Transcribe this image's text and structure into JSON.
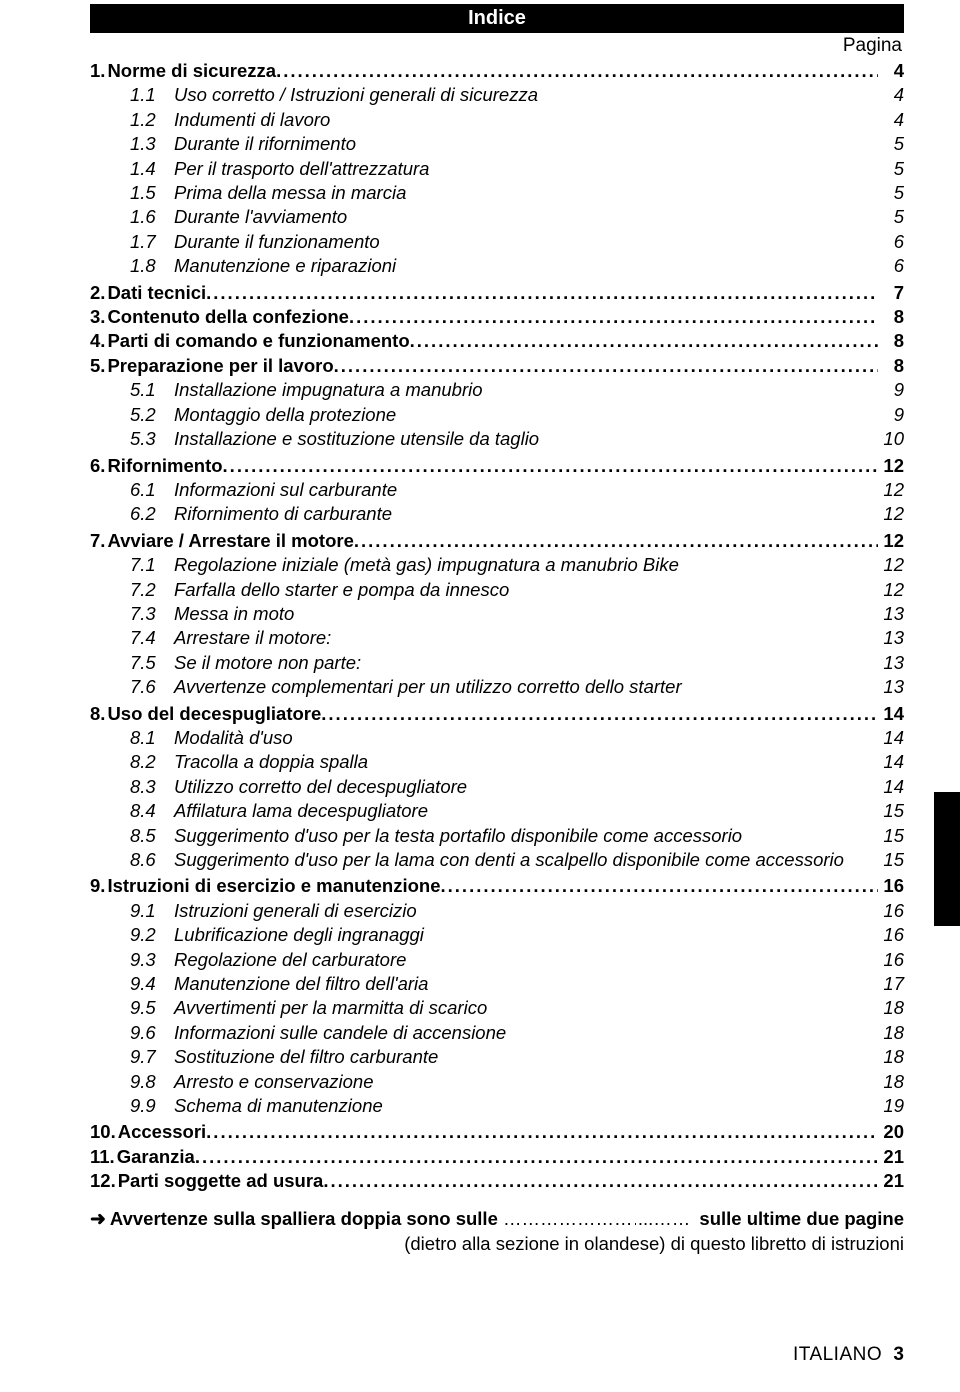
{
  "title": "Indice",
  "pagina_label": "Pagina",
  "colors": {
    "bg": "#ffffff",
    "bar_bg": "#000000",
    "bar_fg": "#ffffff",
    "text": "#000000"
  },
  "typography": {
    "base_fontsize_pt": 14,
    "title_fontsize_pt": 15,
    "font_family": "Arial"
  },
  "toc": [
    {
      "type": "main",
      "num": "1.",
      "title": "Norme di sicurezza",
      "page": "4"
    },
    {
      "type": "sub",
      "num": "1.1",
      "title": "Uso corretto / Istruzioni generali di sicurezza",
      "page": "4"
    },
    {
      "type": "sub",
      "num": "1.2",
      "title": "Indumenti di lavoro",
      "page": "4"
    },
    {
      "type": "sub",
      "num": "1.3",
      "title": "Durante il rifornimento",
      "page": "5"
    },
    {
      "type": "sub",
      "num": "1.4",
      "title": "Per il trasporto dell'attrezzatura",
      "page": "5"
    },
    {
      "type": "sub",
      "num": "1.5",
      "title": "Prima della messa in marcia",
      "page": "5"
    },
    {
      "type": "sub",
      "num": "1.6",
      "title": "Durante l'avviamento",
      "page": "5"
    },
    {
      "type": "sub",
      "num": "1.7",
      "title": "Durante il funzionamento",
      "page": "6"
    },
    {
      "type": "sub",
      "num": "1.8",
      "title": "Manutenzione e riparazioni",
      "page": "6"
    },
    {
      "type": "main",
      "num": "2.",
      "title": "Dati tecnici",
      "page": "7"
    },
    {
      "type": "main",
      "num": "3.",
      "title": "Contenuto della confezione",
      "page": "8"
    },
    {
      "type": "main",
      "num": "4.",
      "title": "Parti di comando e funzionamento",
      "page": "8"
    },
    {
      "type": "main",
      "num": "5.",
      "title": "Preparazione per il lavoro",
      "page": "8"
    },
    {
      "type": "sub",
      "num": "5.1",
      "title": "Installazione impugnatura a manubrio",
      "page": "9"
    },
    {
      "type": "sub",
      "num": "5.2",
      "title": "Montaggio della protezione",
      "page": "9"
    },
    {
      "type": "sub",
      "num": "5.3",
      "title": "Installazione e sostituzione utensile da taglio",
      "page": "10"
    },
    {
      "type": "main",
      "num": "6.",
      "title": "Rifornimento",
      "page": "12"
    },
    {
      "type": "sub",
      "num": "6.1",
      "title": "Informazioni sul carburante",
      "page": "12"
    },
    {
      "type": "sub",
      "num": "6.2",
      "title": "Rifornimento di carburante",
      "page": "12"
    },
    {
      "type": "main",
      "num": "7.",
      "title": "Avviare / Arrestare il motore",
      "page": "12"
    },
    {
      "type": "sub",
      "num": "7.1",
      "title": "Regolazione iniziale (metà gas) impugnatura a manubrio Bike",
      "page": "12"
    },
    {
      "type": "sub",
      "num": "7.2",
      "title": "Farfalla dello starter e pompa da innesco",
      "page": "12"
    },
    {
      "type": "sub",
      "num": "7.3",
      "title": "Messa in moto",
      "page": "13"
    },
    {
      "type": "sub",
      "num": "7.4",
      "title": "Arrestare il motore:",
      "page": "13"
    },
    {
      "type": "sub",
      "num": "7.5",
      "title": "Se il motore non parte:",
      "page": "13"
    },
    {
      "type": "sub",
      "num": "7.6",
      "title": "Avvertenze complementari per un utilizzo corretto dello starter",
      "page": "13"
    },
    {
      "type": "main",
      "num": "8.",
      "title": "Uso del decespugliatore",
      "page": "14"
    },
    {
      "type": "sub",
      "num": "8.1",
      "title": "Modalità d'uso",
      "page": "14"
    },
    {
      "type": "sub",
      "num": "8.2",
      "title": "Tracolla a doppia spalla",
      "page": "14"
    },
    {
      "type": "sub",
      "num": "8.3",
      "title": "Utilizzo corretto del decespugliatore",
      "page": "14"
    },
    {
      "type": "sub",
      "num": "8.4",
      "title": "Affilatura lama decespugliatore",
      "page": "15"
    },
    {
      "type": "sub",
      "num": "8.5",
      "title": "Suggerimento d'uso per la testa portafilo disponibile come accessorio",
      "page": "15"
    },
    {
      "type": "sub",
      "num": "8.6",
      "title": "Suggerimento d'uso per la lama con denti a scalpello disponibile come accessorio",
      "page": "15"
    },
    {
      "type": "main",
      "num": "9.",
      "title": "Istruzioni di esercizio e manutenzione",
      "page": "16"
    },
    {
      "type": "sub",
      "num": "9.1",
      "title": "Istruzioni generali di esercizio",
      "page": "16"
    },
    {
      "type": "sub",
      "num": "9.2",
      "title": "Lubrificazione degli ingranaggi",
      "page": "16"
    },
    {
      "type": "sub",
      "num": "9.3",
      "title": "Regolazione del carburatore",
      "page": "16"
    },
    {
      "type": "sub",
      "num": "9.4",
      "title": "Manutenzione del filtro dell'aria",
      "page": "17"
    },
    {
      "type": "sub",
      "num": "9.5",
      "title": "Avvertimenti per la marmitta di scarico",
      "page": "18"
    },
    {
      "type": "sub",
      "num": "9.6",
      "title": "Informazioni sulle candele di accensione",
      "page": "18"
    },
    {
      "type": "sub",
      "num": "9.7",
      "title": "Sostituzione del filtro carburante",
      "page": "18"
    },
    {
      "type": "sub",
      "num": "9.8",
      "title": "Arresto e conservazione",
      "page": "18"
    },
    {
      "type": "sub",
      "num": "9.9",
      "title": "Schema di manutenzione",
      "page": "19"
    },
    {
      "type": "main",
      "num": "10.",
      "title": "Accessori",
      "page": "20"
    },
    {
      "type": "main",
      "num": "11.",
      "title": "Garanzia",
      "page": "21"
    },
    {
      "type": "main",
      "num": "12.",
      "title": "Parti soggette ad usura",
      "page": "21"
    }
  ],
  "note": {
    "arrow": "➜",
    "left": "Avvertenze sulla spalliera doppia sono sulle",
    "mid": "...……",
    "right": "sulle ultime due pagine",
    "line2": "(dietro alla sezione in olandese) di questo libretto di istruzioni"
  },
  "footer": {
    "language": "ITALIANO",
    "page_number": "3"
  }
}
